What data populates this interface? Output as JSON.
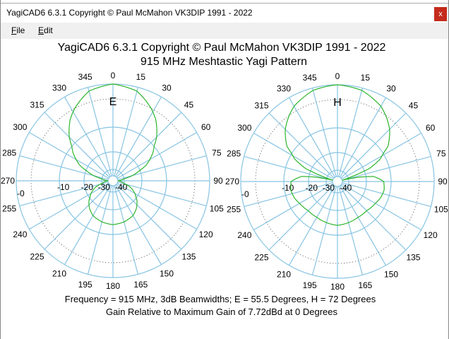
{
  "window": {
    "title": "YagiCAD6 6.3.1   Copyright © Paul McMahon VK3DIP 1991 - 2022",
    "close_label": "x"
  },
  "menu": [
    {
      "label": "File"
    },
    {
      "label": "Edit"
    }
  ],
  "header": {
    "title": "YagiCAD6 6.3.1   Copyright © Paul McMahon VK3DIP 1991 - 2022",
    "subtitle": "915 MHz Meshtastic Yagi Pattern"
  },
  "footer": {
    "line1": "Frequency = 915 MHz,  3dB Beamwidths; E = 55.5 Degrees, H = 72 Degrees",
    "line2": "Gain Relative to Maximum Gain of 7.72dBd at 0 Degrees"
  },
  "colors": {
    "grid": "#87c4e2",
    "pattern": "#2db52d",
    "dotted": "#555555"
  },
  "chart_data": [
    {
      "type": "polar",
      "title": "E",
      "angle_labels": [
        "0",
        "15",
        "30",
        "45",
        "60",
        "75",
        "90",
        "105",
        "120",
        "135",
        "150",
        "165",
        "180",
        "195",
        "210",
        "225",
        "240",
        "255",
        "270",
        "285",
        "300",
        "315",
        "330",
        "345"
      ],
      "rings_db": [
        0,
        -3,
        -10,
        -20,
        -30,
        -40
      ],
      "ring_labels": [
        "-0",
        "-10",
        "-20",
        "-30",
        "-40"
      ],
      "angles": [
        0,
        15,
        27.75,
        35,
        45,
        55,
        65,
        75,
        85,
        90,
        100,
        110,
        120,
        130,
        140,
        150,
        165,
        180
      ],
      "db": [
        0,
        -0.8,
        -3,
        -4.8,
        -8,
        -12,
        -17,
        -25,
        -35,
        -40,
        -32,
        -26,
        -22,
        -19,
        -17,
        -15.5,
        -14.5,
        -14
      ]
    },
    {
      "type": "polar",
      "title": "H",
      "angle_labels": [
        "0",
        "15",
        "30",
        "45",
        "60",
        "75",
        "90",
        "105",
        "120",
        "135",
        "150",
        "165",
        "180",
        "195",
        "210",
        "225",
        "240",
        "255",
        "270",
        "285",
        "300",
        "315",
        "330",
        "345"
      ],
      "rings_db": [
        0,
        -3,
        -10,
        -20,
        -30,
        -40
      ],
      "ring_labels": [
        "-0",
        "-10",
        "-20",
        "-30",
        "-40"
      ],
      "angles": [
        0,
        15,
        30,
        36,
        45,
        55,
        62,
        68,
        72,
        75,
        78,
        82,
        90,
        100,
        110,
        120,
        135,
        150,
        165,
        180
      ],
      "db": [
        0,
        -0.5,
        -2,
        -3,
        -5,
        -8,
        -12,
        -18,
        -30,
        -40,
        -25,
        -17,
        -13,
        -12.5,
        -13,
        -14,
        -15,
        -15,
        -14.5,
        -14
      ]
    }
  ]
}
